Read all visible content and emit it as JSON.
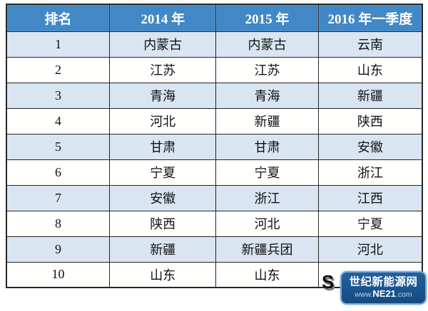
{
  "chart_data": {
    "type": "table",
    "title": "",
    "columns": [
      "排名",
      "2014 年",
      "2015 年",
      "2016 年一季度"
    ],
    "rows": [
      [
        "1",
        "内蒙古",
        "内蒙古",
        "云南"
      ],
      [
        "2",
        "江苏",
        "江苏",
        "山东"
      ],
      [
        "3",
        "青海",
        "青海",
        "新疆"
      ],
      [
        "4",
        "河北",
        "新疆",
        "陕西"
      ],
      [
        "5",
        "甘肃",
        "甘肃",
        "安徽"
      ],
      [
        "6",
        "宁夏",
        "宁夏",
        "浙江"
      ],
      [
        "7",
        "安徽",
        "浙江",
        "江西"
      ],
      [
        "8",
        "陕西",
        "河北",
        "宁夏"
      ],
      [
        "9",
        "新疆",
        "新疆兵团",
        "河北"
      ],
      [
        "10",
        "山东",
        "山东",
        ""
      ]
    ],
    "layout": {
      "header_background": "#4288c6",
      "header_text_color": "#ffffff",
      "odd_row_background": "#d9e5f1",
      "even_row_background": "#ffffff",
      "border_color": "#262626",
      "striped": true
    }
  },
  "watermark": {
    "title": "世纪新能源网",
    "url_prefix": "www.",
    "url_brand": "NE21",
    "url_suffix": ".com",
    "background": "#1b5492",
    "border_color": "#79a8d6"
  },
  "overlay": {
    "hidden_letter": "S"
  }
}
